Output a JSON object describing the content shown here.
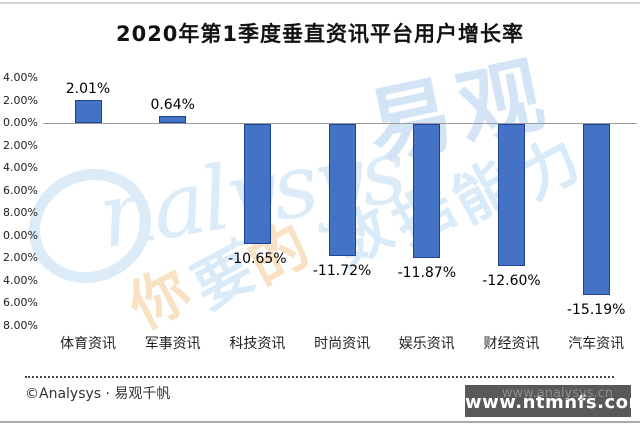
{
  "title": "2020年第1季度垂直资讯平台用户增长率",
  "chart_data": {
    "type": "bar",
    "title": "2020年第1季度垂直资讯平台用户增长率",
    "categories": [
      "体育资讯",
      "军事资讯",
      "科技资讯",
      "时尚资讯",
      "娱乐资讯",
      "财经资讯",
      "汽车资讯"
    ],
    "values": [
      2.01,
      0.64,
      -10.65,
      -11.72,
      -11.87,
      -12.6,
      -15.19
    ],
    "data_labels": [
      "2.01%",
      "0.64%",
      "-10.65%",
      "-11.72%",
      "-11.87%",
      "-12.60%",
      "-15.19%"
    ],
    "xlabel": "",
    "ylabel": "",
    "ylim": [
      -18,
      4
    ],
    "ytick_step": 2,
    "ytick_labels_visible": [
      "4.00%",
      "2.00%",
      "0.00%",
      "2.00%",
      "4.00%",
      "6.00%",
      "8.00%",
      "0.00%",
      "2.00%",
      "4.00%",
      "6.00%",
      "8.00%"
    ],
    "grid": false,
    "legend": false,
    "bar_color": "#4472C4",
    "bar_border_color": "#1F419B",
    "axis_color": "#9B9B9B",
    "label_color": "#000000"
  },
  "watermark": {
    "logo_script": "nalysys",
    "brand": "易观",
    "phrase_text": "你要的数据能力",
    "phrase": [
      {
        "ch": "你"
      },
      {
        "ch": "要"
      },
      {
        "ch": "的"
      },
      {
        "ch": "数"
      },
      {
        "ch": "据"
      },
      {
        "ch": "能"
      },
      {
        "ch": "力"
      }
    ],
    "blue": "#D9EAF8",
    "orange": "#F9E2C4"
  },
  "footer": {
    "copyright": "©Analysys ·  易观千帆",
    "url_watermark": "www.analysys.cn",
    "stamp": "www.ntmnfs.com",
    "stamp_bg": "#58595B"
  }
}
